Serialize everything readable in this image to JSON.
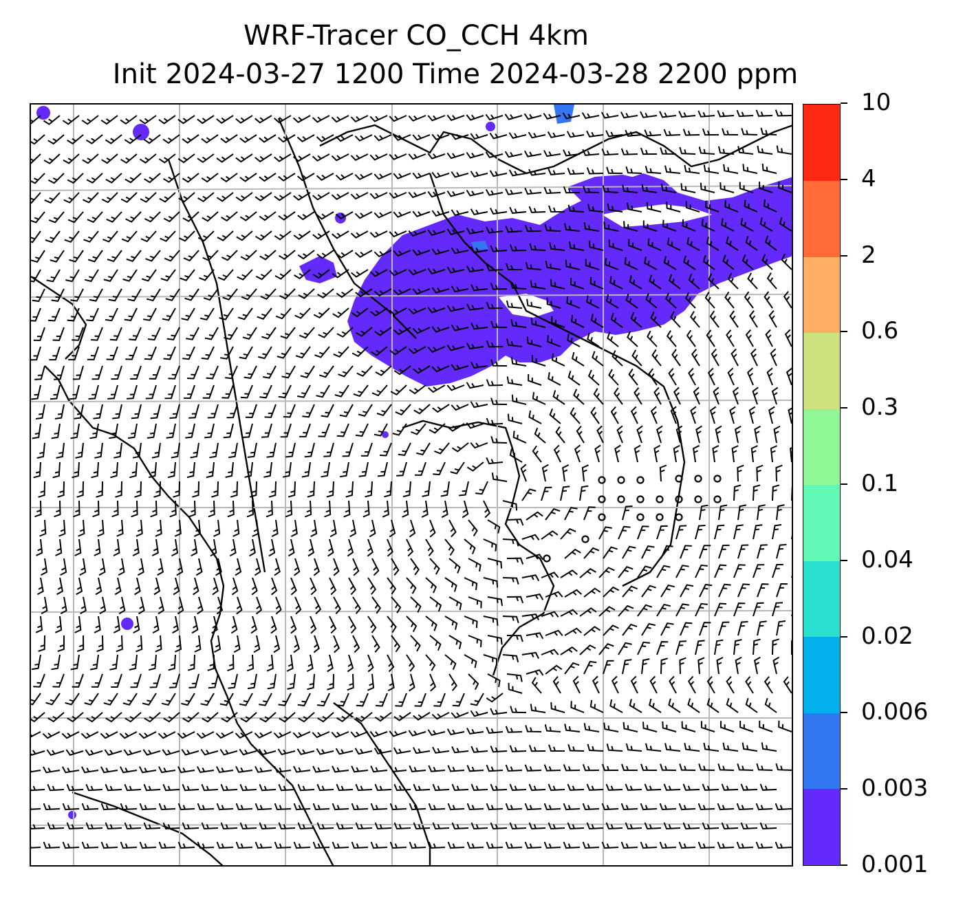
{
  "title": {
    "line1": "WRF-Tracer CO_CCH 4km",
    "line2": "Init 2024-03-27 1200 Time 2024-03-28 2200 ppm"
  },
  "colorbar": {
    "levels": [
      "0.001",
      "0.003",
      "0.006",
      "0.02",
      "0.04",
      "0.1",
      "0.3",
      "0.6",
      "2",
      "4",
      "10"
    ],
    "colors": [
      "#6429fb",
      "#3377f2",
      "#02b1ec",
      "#2bdfd1",
      "#62f8b6",
      "#8ff796",
      "#cde17e",
      "#fdae62",
      "#ff6b37",
      "#fe2913"
    ]
  },
  "map": {
    "gridlines": true,
    "plume_color": "#6429fb",
    "trace_color": "#3377f2",
    "wind_barbs": true
  }
}
